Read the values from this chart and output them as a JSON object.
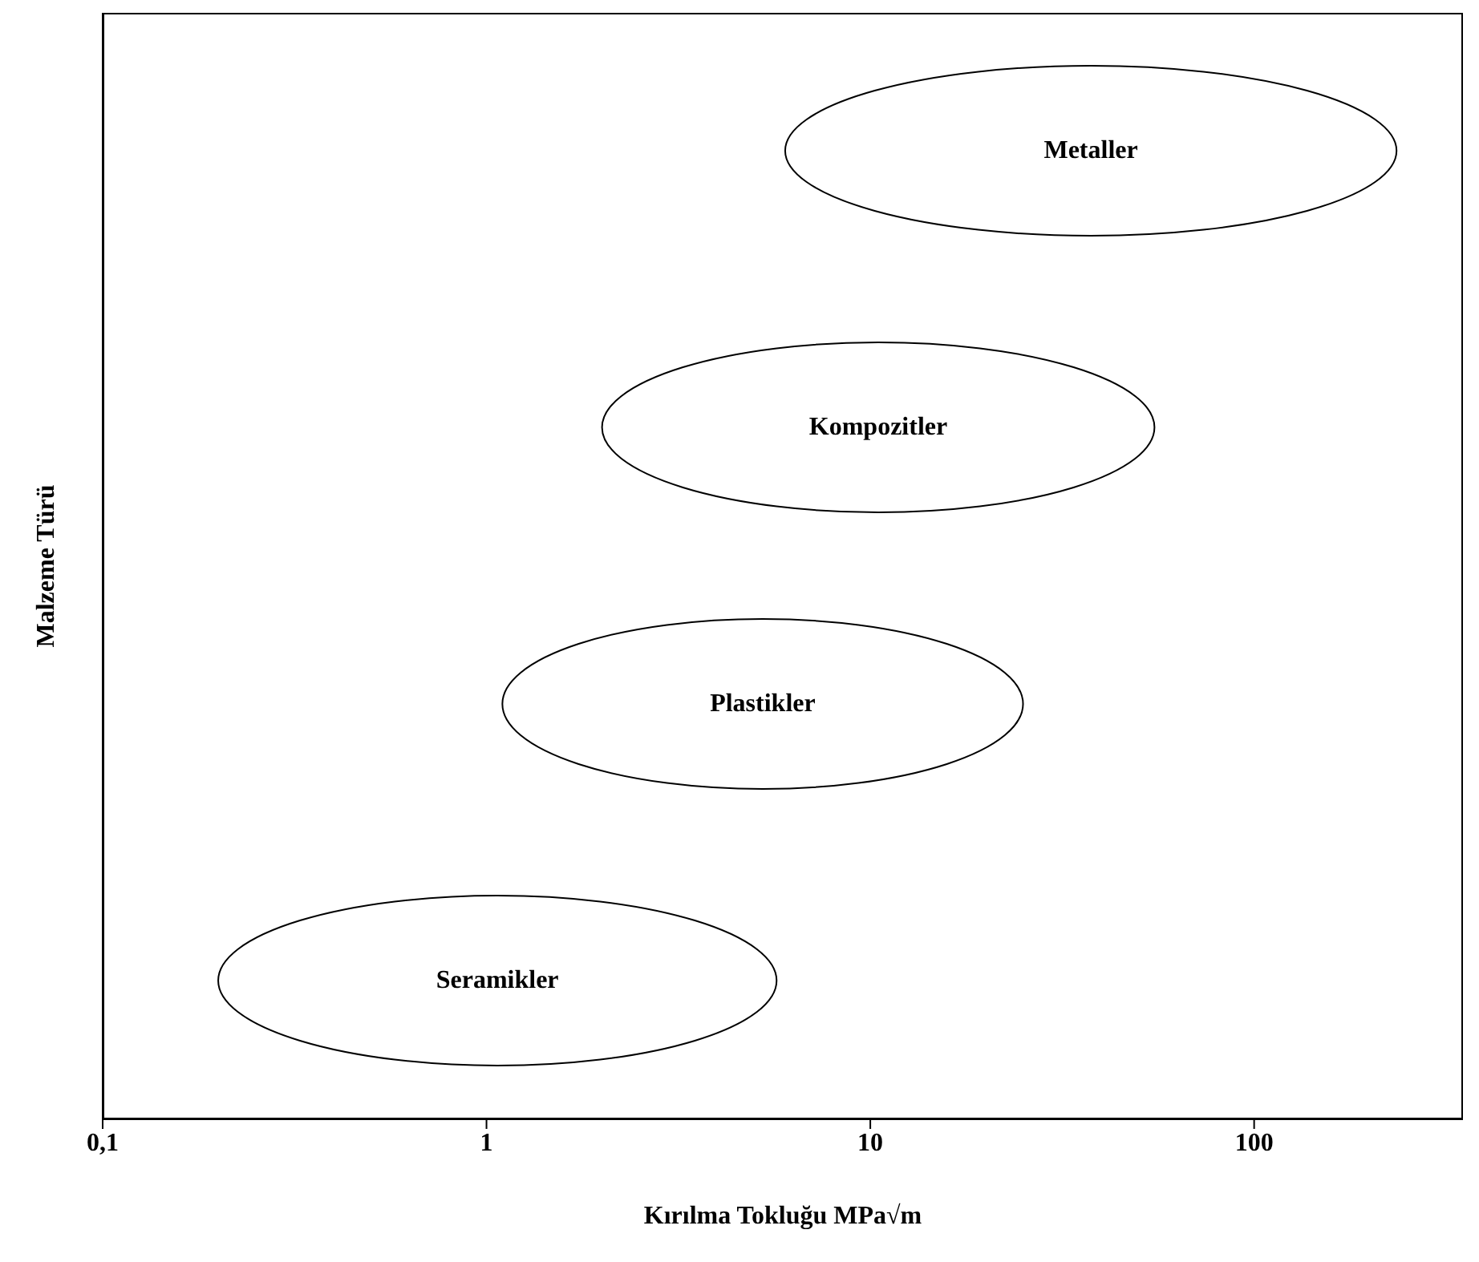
{
  "chart_data": {
    "type": "bar",
    "orientation": "horizontal",
    "xlabel": "Kırılma Tokluğu MPa√m",
    "ylabel": "Malzeme Türü",
    "categories": [
      "Metaller",
      "Kompozitler",
      "Plastikler",
      "Seramikler"
    ],
    "base": [
      6,
      2,
      1.1,
      0.2
    ],
    "values": [
      229,
      53,
      23.9,
      5.5
    ],
    "color": "#ffffff",
    "log": "x",
    "xlim": [
      0.1,
      350
    ],
    "xticks": [
      {
        "value": 0.1,
        "label": "0,1"
      },
      1,
      10,
      100
    ],
    "tick_labels": "x"
  }
}
